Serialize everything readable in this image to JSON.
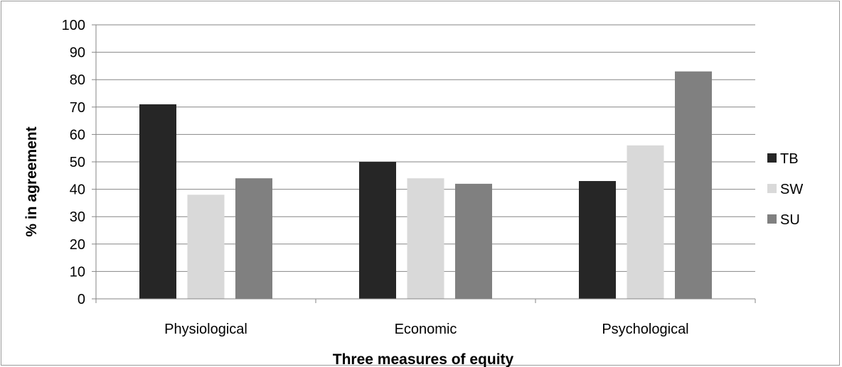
{
  "chart_data": {
    "type": "bar",
    "title": "",
    "xlabel": "Three measures of equity",
    "ylabel": "% in agreement",
    "categories": [
      "Physiological",
      "Economic",
      "Psychological"
    ],
    "series": [
      {
        "name": "TB",
        "values": [
          71,
          50,
          43
        ],
        "color": "#262626"
      },
      {
        "name": "SW",
        "values": [
          38,
          44,
          56
        ],
        "color": "#d9d9d9"
      },
      {
        "name": "SU",
        "values": [
          44,
          42,
          83
        ],
        "color": "#808080"
      }
    ],
    "ylim": [
      0,
      100
    ],
    "yticks": [
      0,
      10,
      20,
      30,
      40,
      50,
      60,
      70,
      80,
      90,
      100
    ],
    "grid": true,
    "gridColor": "#868686",
    "legend": "right"
  }
}
